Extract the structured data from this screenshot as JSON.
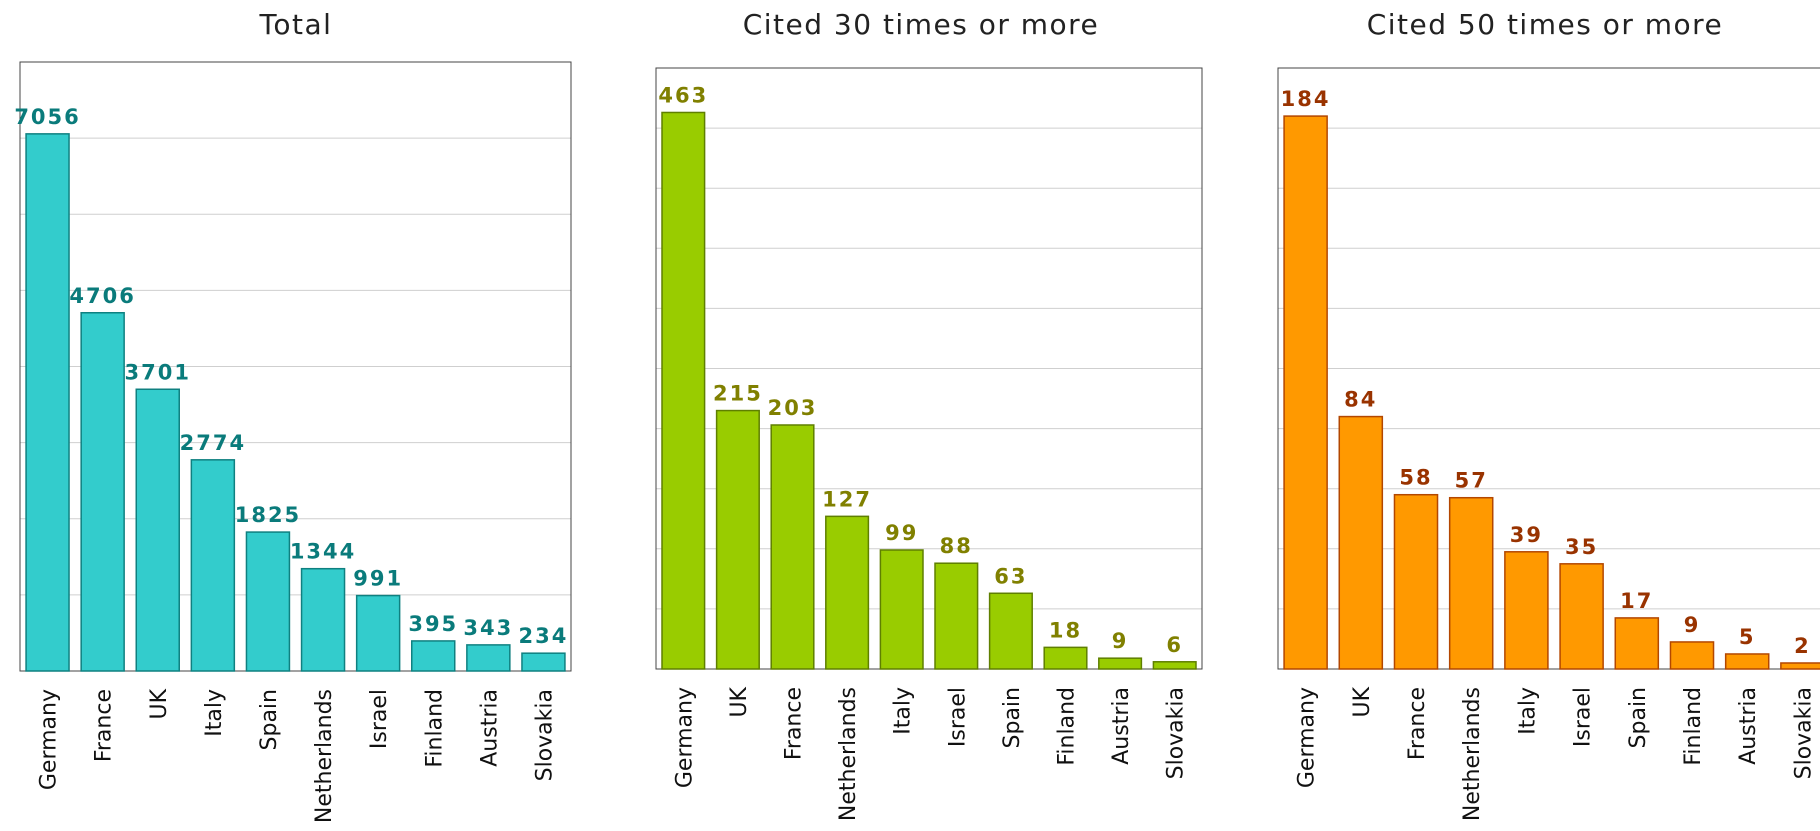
{
  "chart_data": [
    {
      "type": "bar",
      "title": "Total",
      "categories": [
        "Germany",
        "France",
        "UK",
        "Italy",
        "Spain",
        "Netherlands",
        "Israel",
        "Finland",
        "Austria",
        "Slovakia"
      ],
      "values": [
        7056,
        4706,
        3701,
        2774,
        1825,
        1344,
        991,
        395,
        343,
        234
      ],
      "ylim": [
        0,
        8000
      ],
      "grid_step": 1000,
      "grid": true,
      "bar_color": "#33cccc",
      "bar_border": "#0f8080",
      "label_color": "#0a7b7b"
    },
    {
      "type": "bar",
      "title": "Cited 30 times or more",
      "categories": [
        "Germany",
        "UK",
        "France",
        "Netherlands",
        "Italy",
        "Israel",
        "Spain",
        "Finland",
        "Austria",
        "Slovakia"
      ],
      "values": [
        463,
        215,
        203,
        127,
        99,
        88,
        63,
        18,
        9,
        6
      ],
      "ylim": [
        0,
        500
      ],
      "grid_step": 50,
      "grid": true,
      "bar_color": "#99cc00",
      "bar_border": "#5f7f00",
      "label_color": "#808000"
    },
    {
      "type": "bar",
      "title": "Cited 50 times or more",
      "categories": [
        "Germany",
        "UK",
        "France",
        "Netherlands",
        "Italy",
        "Israel",
        "Spain",
        "Finland",
        "Austria",
        "Slovakia"
      ],
      "values": [
        184,
        84,
        58,
        57,
        39,
        35,
        17,
        9,
        5,
        2
      ],
      "ylim": [
        0,
        200
      ],
      "grid_step": 20,
      "grid": true,
      "bar_color": "#ff9900",
      "bar_border": "#b34700",
      "label_color": "#993300"
    }
  ]
}
